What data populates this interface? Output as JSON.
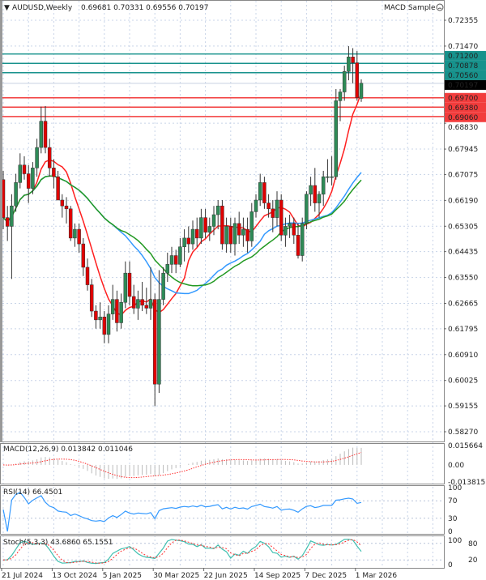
{
  "header": {
    "symbol_timeframe": "AUDUSD,Weekly",
    "ohlc": "0.69681 0.70331 0.69556 0.70197"
  },
  "expert_label": "MACD Sample",
  "expert_icon": "frown-face-icon",
  "colors": {
    "bull": "#2e8b57",
    "bear": "#e00000",
    "resistance": "#17928c",
    "support": "#f23c3c",
    "ma_fast": "#ff2020",
    "ma_mid": "#3399ff",
    "ma_slow": "#229922",
    "grid": "#c8d4e8"
  },
  "chart_data": [
    {
      "type": "candlestick",
      "title": "AUDUSD,Weekly",
      "ylim": [
        0.5827,
        0.72355
      ],
      "y_ticks": [
        "0.72355",
        "0.71470",
        "0.68830",
        "0.67945",
        "0.67075",
        "0.66190",
        "0.65305",
        "0.64435",
        "0.63550",
        "0.62665",
        "0.61795",
        "0.60910",
        "0.60025",
        "0.59155",
        "0.58270"
      ],
      "x_ticks": [
        "21 Jul 2024",
        "13 Oct 2024",
        "5 Jan 2025",
        "30 Mar 2025",
        "22 Jun 2025",
        "14 Sep 2025",
        "7 Dec 2025",
        "1 Mar 2026"
      ],
      "x_tick_index": [
        0,
        12,
        24,
        36,
        48,
        60,
        72,
        84
      ],
      "current_price": "0.70197",
      "resistance_levels": [
        "0.71200",
        "0.70878",
        "0.70560"
      ],
      "support_levels": [
        "0.69700",
        "0.69380",
        "0.69060"
      ],
      "ohlc": [
        [
          0.669,
          0.672,
          0.652,
          0.656
        ],
        [
          0.656,
          0.66,
          0.648,
          0.653
        ],
        [
          0.653,
          0.664,
          0.635,
          0.66
        ],
        [
          0.66,
          0.671,
          0.658,
          0.668
        ],
        [
          0.668,
          0.678,
          0.666,
          0.674
        ],
        [
          0.674,
          0.677,
          0.669,
          0.671
        ],
        [
          0.671,
          0.674,
          0.661,
          0.666
        ],
        [
          0.666,
          0.675,
          0.664,
          0.673
        ],
        [
          0.673,
          0.683,
          0.67,
          0.68
        ],
        [
          0.68,
          0.694,
          0.678,
          0.689
        ],
        [
          0.689,
          0.6942,
          0.678,
          0.68
        ],
        [
          0.68,
          0.683,
          0.67,
          0.673
        ],
        [
          0.673,
          0.676,
          0.666,
          0.67
        ],
        [
          0.67,
          0.672,
          0.662,
          0.662
        ],
        [
          0.662,
          0.664,
          0.656,
          0.66
        ],
        [
          0.66,
          0.663,
          0.654,
          0.659
        ],
        [
          0.659,
          0.66,
          0.648,
          0.649
        ],
        [
          0.649,
          0.654,
          0.646,
          0.652
        ],
        [
          0.652,
          0.654,
          0.644,
          0.647
        ],
        [
          0.647,
          0.649,
          0.636,
          0.639
        ],
        [
          0.639,
          0.642,
          0.631,
          0.633
        ],
        [
          0.633,
          0.635,
          0.622,
          0.624
        ],
        [
          0.624,
          0.626,
          0.618,
          0.621
        ],
        [
          0.621,
          0.627,
          0.618,
          0.622
        ],
        [
          0.622,
          0.624,
          0.613,
          0.616
        ],
        [
          0.616,
          0.626,
          0.613,
          0.623
        ],
        [
          0.623,
          0.633,
          0.621,
          0.628
        ],
        [
          0.628,
          0.631,
          0.617,
          0.62
        ],
        [
          0.62,
          0.63,
          0.618,
          0.627
        ],
        [
          0.627,
          0.641,
          0.625,
          0.637
        ],
        [
          0.637,
          0.641,
          0.626,
          0.629
        ],
        [
          0.629,
          0.633,
          0.623,
          0.625
        ],
        [
          0.625,
          0.631,
          0.621,
          0.628
        ],
        [
          0.628,
          0.634,
          0.624,
          0.626
        ],
        [
          0.626,
          0.632,
          0.623,
          0.625
        ],
        [
          0.625,
          0.639,
          0.621,
          0.628
        ],
        [
          0.628,
          0.63,
          0.5915,
          0.599
        ],
        [
          0.599,
          0.638,
          0.596,
          0.628
        ],
        [
          0.628,
          0.639,
          0.626,
          0.637
        ],
        [
          0.637,
          0.644,
          0.634,
          0.64
        ],
        [
          0.64,
          0.646,
          0.637,
          0.643
        ],
        [
          0.643,
          0.645,
          0.637,
          0.64
        ],
        [
          0.64,
          0.649,
          0.639,
          0.646
        ],
        [
          0.646,
          0.652,
          0.641,
          0.649
        ],
        [
          0.649,
          0.653,
          0.644,
          0.647
        ],
        [
          0.647,
          0.655,
          0.645,
          0.652
        ],
        [
          0.652,
          0.656,
          0.646,
          0.649
        ],
        [
          0.649,
          0.659,
          0.647,
          0.656
        ],
        [
          0.656,
          0.659,
          0.649,
          0.651
        ],
        [
          0.651,
          0.656,
          0.648,
          0.653
        ],
        [
          0.653,
          0.66,
          0.65,
          0.657
        ],
        [
          0.657,
          0.662,
          0.652,
          0.66
        ],
        [
          0.66,
          0.662,
          0.645,
          0.647
        ],
        [
          0.647,
          0.656,
          0.644,
          0.653
        ],
        [
          0.653,
          0.656,
          0.644,
          0.647
        ],
        [
          0.647,
          0.656,
          0.643,
          0.654
        ],
        [
          0.654,
          0.658,
          0.647,
          0.65
        ],
        [
          0.65,
          0.656,
          0.646,
          0.652
        ],
        [
          0.652,
          0.656,
          0.644,
          0.648
        ],
        [
          0.648,
          0.661,
          0.646,
          0.658
        ],
        [
          0.658,
          0.664,
          0.656,
          0.662
        ],
        [
          0.662,
          0.671,
          0.66,
          0.668
        ],
        [
          0.668,
          0.67,
          0.659,
          0.661
        ],
        [
          0.661,
          0.664,
          0.656,
          0.659
        ],
        [
          0.659,
          0.662,
          0.651,
          0.656
        ],
        [
          0.656,
          0.665,
          0.653,
          0.662
        ],
        [
          0.662,
          0.664,
          0.648,
          0.65
        ],
        [
          0.65,
          0.656,
          0.646,
          0.653
        ],
        [
          0.653,
          0.657,
          0.649,
          0.654
        ],
        [
          0.654,
          0.656,
          0.647,
          0.65
        ],
        [
          0.65,
          0.654,
          0.642,
          0.643
        ],
        [
          0.643,
          0.656,
          0.641,
          0.654
        ],
        [
          0.654,
          0.665,
          0.652,
          0.664
        ],
        [
          0.664,
          0.67,
          0.66,
          0.667
        ],
        [
          0.667,
          0.673,
          0.658,
          0.661
        ],
        [
          0.661,
          0.665,
          0.656,
          0.664
        ],
        [
          0.664,
          0.672,
          0.66,
          0.67
        ],
        [
          0.67,
          0.676,
          0.668,
          0.67
        ],
        [
          0.67,
          0.677,
          0.667,
          0.67
        ],
        [
          0.67,
          0.7,
          0.669,
          0.696
        ],
        [
          0.696,
          0.7,
          0.689,
          0.699
        ],
        [
          0.699,
          0.708,
          0.696,
          0.706
        ],
        [
          0.706,
          0.7147,
          0.703,
          0.711
        ],
        [
          0.711,
          0.714,
          0.702,
          0.709
        ],
        [
          0.709,
          0.713,
          0.696,
          0.697
        ],
        [
          0.6968,
          0.7033,
          0.6956,
          0.702
        ]
      ]
    },
    {
      "type": "histogram",
      "title": "MACD(12,26,9) 0.013842 0.011046",
      "y_ticks": [
        "0.015664",
        "0.00",
        "-0.013815"
      ],
      "ylim": [
        -0.013815,
        0.015664
      ]
    },
    {
      "type": "line",
      "title": "RSI(14) 66.4501",
      "y_ticks": [
        "100",
        "70",
        "30",
        "0"
      ],
      "ylim": [
        0,
        100
      ]
    },
    {
      "type": "line",
      "title": "Stoch(5,3,3) 43.6860 65.1551",
      "y_ticks": [
        "100",
        "80",
        "20",
        "0"
      ],
      "ylim": [
        0,
        100
      ]
    }
  ]
}
